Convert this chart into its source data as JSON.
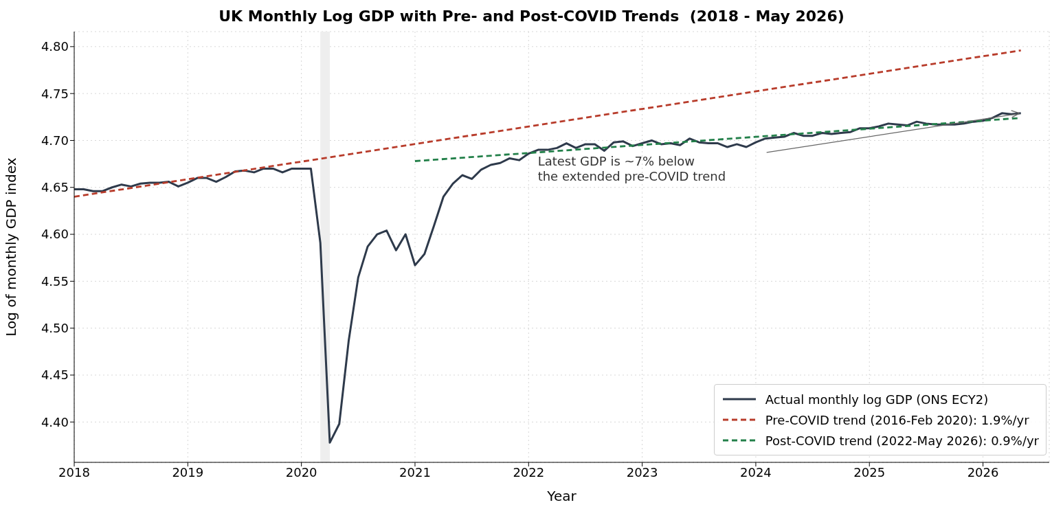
{
  "chart_data": {
    "type": "line",
    "title": "UK Monthly Log GDP with Pre- and Post-COVID Trends  (2018 - May 2026)",
    "xlabel": "Year",
    "ylabel": "Log of monthly GDP index",
    "xlim": [
      "2018-01",
      "2026-08"
    ],
    "xticks": [
      "2018",
      "2019",
      "2020",
      "2021",
      "2022",
      "2023",
      "2024",
      "2025",
      "2026"
    ],
    "ylim": [
      4.357,
      4.816
    ],
    "yticks": [
      {
        "value": 4.4,
        "label": "4.40"
      },
      {
        "value": 4.45,
        "label": "4.45"
      },
      {
        "value": 4.5,
        "label": "4.50"
      },
      {
        "value": 4.55,
        "label": "4.55"
      },
      {
        "value": 4.6,
        "label": "4.60"
      },
      {
        "value": 4.65,
        "label": "4.65"
      },
      {
        "value": 4.7,
        "label": "4.70"
      },
      {
        "value": 4.75,
        "label": "4.75"
      },
      {
        "value": 4.8,
        "label": "4.80"
      }
    ],
    "grid": true,
    "legend": "bottom right",
    "marker": "none",
    "bands": [
      {
        "axis": "x",
        "from": "2020-03",
        "to": "2020-04",
        "color": "#eeeeee"
      }
    ],
    "annotations": [
      "Latest GDP is ~7% below\nthe extended pre-COVID trend"
    ],
    "series": [
      {
        "name": "Actual monthly log GDP (ONS ECY2)",
        "color": "#2e3a4b",
        "line_style": "solid",
        "x": [
          "2018-01",
          "2018-02",
          "2018-03",
          "2018-04",
          "2018-05",
          "2018-06",
          "2018-07",
          "2018-08",
          "2018-09",
          "2018-10",
          "2018-11",
          "2018-12",
          "2019-01",
          "2019-02",
          "2019-03",
          "2019-04",
          "2019-05",
          "2019-06",
          "2019-07",
          "2019-08",
          "2019-09",
          "2019-10",
          "2019-11",
          "2019-12",
          "2020-01",
          "2020-02",
          "2020-03",
          "2020-04",
          "2020-05",
          "2020-06",
          "2020-07",
          "2020-08",
          "2020-09",
          "2020-10",
          "2020-11",
          "2020-12",
          "2021-01",
          "2021-02",
          "2021-03",
          "2021-04",
          "2021-05",
          "2021-06",
          "2021-07",
          "2021-08",
          "2021-09",
          "2021-10",
          "2021-11",
          "2021-12",
          "2022-01",
          "2022-02",
          "2022-03",
          "2022-04",
          "2022-05",
          "2022-06",
          "2022-07",
          "2022-08",
          "2022-09",
          "2022-10",
          "2022-11",
          "2022-12",
          "2023-01",
          "2023-02",
          "2023-03",
          "2023-04",
          "2023-05",
          "2023-06",
          "2023-07",
          "2023-08",
          "2023-09",
          "2023-10",
          "2023-11",
          "2023-12",
          "2024-01",
          "2024-02",
          "2024-03",
          "2024-04",
          "2024-05",
          "2024-06",
          "2024-07",
          "2024-08",
          "2024-09",
          "2024-10",
          "2024-11",
          "2024-12",
          "2025-01",
          "2025-02",
          "2025-03",
          "2025-04",
          "2025-05",
          "2025-06",
          "2025-07",
          "2025-08",
          "2025-09",
          "2025-10",
          "2025-11",
          "2025-12",
          "2026-01",
          "2026-02",
          "2026-03",
          "2026-04",
          "2026-05"
        ],
        "values": [
          4.648,
          4.648,
          4.646,
          4.646,
          4.65,
          4.653,
          4.651,
          4.654,
          4.655,
          4.655,
          4.656,
          4.651,
          4.655,
          4.66,
          4.66,
          4.656,
          4.661,
          4.667,
          4.668,
          4.666,
          4.67,
          4.67,
          4.666,
          4.67,
          4.67,
          4.67,
          4.591,
          4.378,
          4.398,
          4.487,
          4.554,
          4.587,
          4.6,
          4.604,
          4.583,
          4.6,
          4.567,
          4.579,
          4.609,
          4.64,
          4.654,
          4.663,
          4.659,
          4.669,
          4.674,
          4.676,
          4.681,
          4.679,
          4.686,
          4.69,
          4.69,
          4.692,
          4.697,
          4.692,
          4.696,
          4.696,
          4.689,
          4.698,
          4.699,
          4.694,
          4.697,
          4.7,
          4.696,
          4.697,
          4.695,
          4.702,
          4.698,
          4.697,
          4.697,
          4.693,
          4.696,
          4.693,
          4.698,
          4.702,
          4.703,
          4.704,
          4.708,
          4.705,
          4.705,
          4.708,
          4.707,
          4.708,
          4.709,
          4.713,
          4.713,
          4.715,
          4.718,
          4.717,
          4.716,
          4.72,
          4.718,
          4.717,
          4.717,
          4.717,
          4.718,
          4.72,
          4.721,
          4.724,
          4.729,
          4.728,
          4.729
        ]
      },
      {
        "name": "Pre-COVID trend (2016-Feb 2020): 1.9%/yr",
        "color": "#b83c2b",
        "line_style": "dashed",
        "x": [
          "2018-01",
          "2026-05"
        ],
        "values": [
          4.64,
          4.796
        ]
      },
      {
        "name": "Post-COVID trend (2022-May 2026): 0.9%/yr",
        "color": "#23804a",
        "line_style": "dashed",
        "x": [
          "2021-01",
          "2026-05"
        ],
        "values": [
          4.678,
          4.724
        ]
      }
    ]
  }
}
